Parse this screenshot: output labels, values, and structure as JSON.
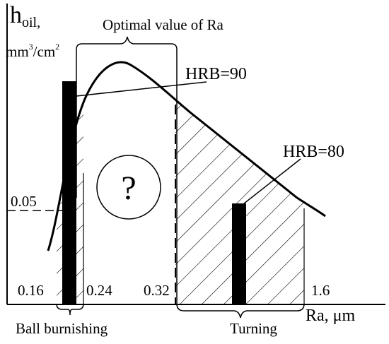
{
  "y_axis": {
    "symbol": "h",
    "subscript": "oil,",
    "unit_base": "mm",
    "unit_exp": "3",
    "unit_mid": "/cm",
    "unit_exp2": "2",
    "tick": "0.05"
  },
  "x_axis": {
    "label": "Ra, μm",
    "ticks": [
      "0.16",
      "0.24",
      "0.32",
      "1.6"
    ]
  },
  "annotations": {
    "optimal": "Optimal value of Ra",
    "hrb90": "HRB=90",
    "hrb80": "HRB=80",
    "question": "?",
    "ball": "Ball burnishing",
    "turning": "Turning"
  }
}
